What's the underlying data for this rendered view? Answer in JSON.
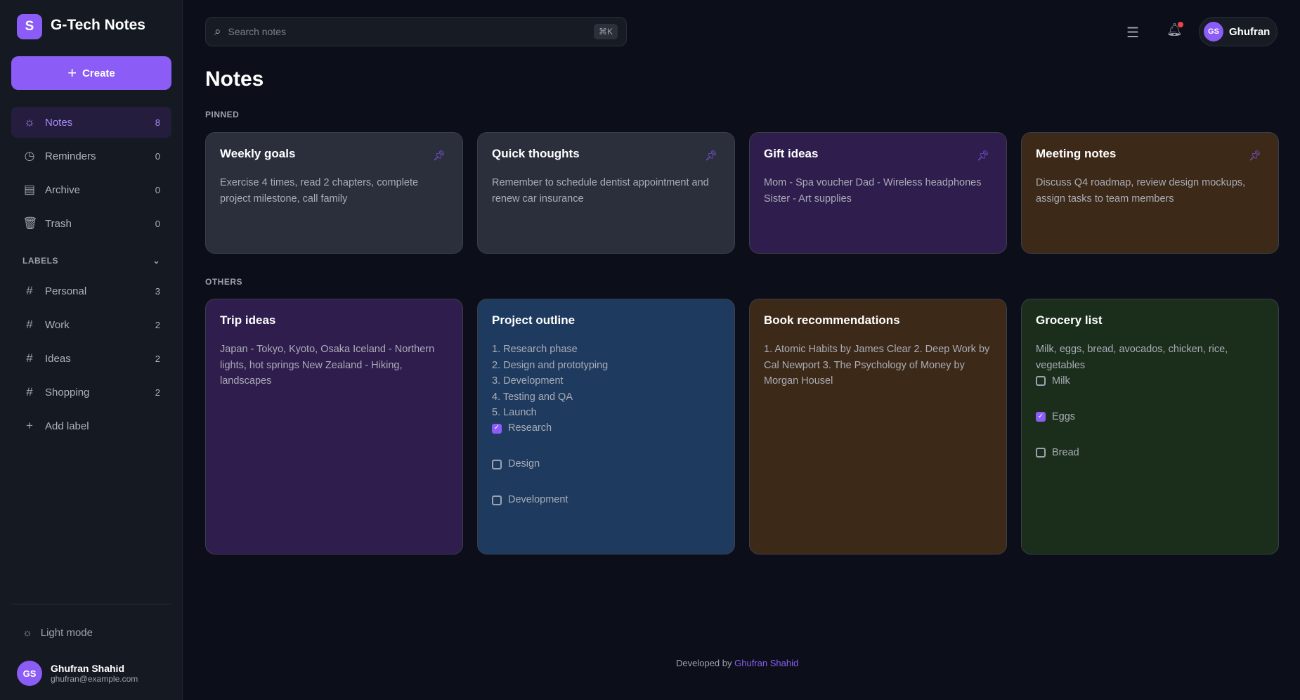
{
  "app": {
    "logo_letter": "S",
    "title": "G-Tech Notes",
    "create_label": "Create",
    "accent": "#8b5cf6"
  },
  "nav": [
    {
      "label": "Notes",
      "count": "8",
      "icon": "lightbulb-icon"
    },
    {
      "label": "Reminders",
      "count": "0",
      "icon": "clock-icon"
    },
    {
      "label": "Archive",
      "count": "0",
      "icon": "archive-icon"
    },
    {
      "label": "Trash",
      "count": "0",
      "icon": "trash-icon"
    }
  ],
  "labels": {
    "heading": "LABELS",
    "items": [
      {
        "label": "Personal",
        "count": "3"
      },
      {
        "label": "Work",
        "count": "2"
      },
      {
        "label": "Ideas",
        "count": "2"
      },
      {
        "label": "Shopping",
        "count": "2"
      }
    ],
    "add_label": "Add label"
  },
  "sidebar_footer": {
    "light_mode": "Light mode",
    "user_initials": "GS",
    "user_name": "Ghufran Shahid",
    "user_email": "ghufran@example.com"
  },
  "header": {
    "search_placeholder": "Search notes",
    "shortcut": "⌘K",
    "user_initials": "GS",
    "user_name": "Ghufran"
  },
  "page": {
    "title": "Notes",
    "pinned_heading": "PINNED",
    "others_heading": "OTHERS"
  },
  "pinned": [
    {
      "title": "Weekly goals",
      "body": "Exercise 4 times, read 2 chapters, complete project milestone, call family",
      "color": "#2a2f3b"
    },
    {
      "title": "Quick thoughts",
      "body": "Remember to schedule dentist appointment and renew car insurance",
      "color": "#2a2f3b"
    },
    {
      "title": "Gift ideas",
      "body": "Mom - Spa voucher Dad - Wireless headphones Sister - Art supplies",
      "color": "#2f1d4e"
    },
    {
      "title": "Meeting notes",
      "body": "Discuss Q4 roadmap, review design mockups, assign tasks to team members",
      "color": "#3d2918"
    }
  ],
  "others": [
    {
      "title": "Trip ideas",
      "body": "Japan - Tokyo, Kyoto, Osaka Iceland - Northern lights, hot springs New Zealand - Hiking, landscapes",
      "color": "#2f1d4e"
    },
    {
      "title": "Project outline",
      "lines": [
        "1. Research phase",
        "2. Design and prototyping",
        "3. Development",
        "4. Testing and QA",
        "5. Launch"
      ],
      "checklist": [
        {
          "label": "Research",
          "checked": true
        },
        {
          "label": "Design",
          "checked": false
        },
        {
          "label": "Development",
          "checked": false
        }
      ],
      "color": "#1e3a5f"
    },
    {
      "title": "Book recommendations",
      "body": "1. Atomic Habits by James Clear 2. Deep Work by Cal Newport 3. The Psychology of Money by Morgan Housel",
      "color": "#3d2918"
    },
    {
      "title": "Grocery list",
      "body": "Milk, eggs, bread, avocados, chicken, rice, vegetables",
      "checklist": [
        {
          "label": "Milk",
          "checked": false
        },
        {
          "label": "Eggs",
          "checked": true
        },
        {
          "label": "Bread",
          "checked": false
        }
      ],
      "color": "#1b2e1c"
    }
  ],
  "footer": {
    "prefix": "Developed by",
    "author": "Ghufran Shahid"
  }
}
